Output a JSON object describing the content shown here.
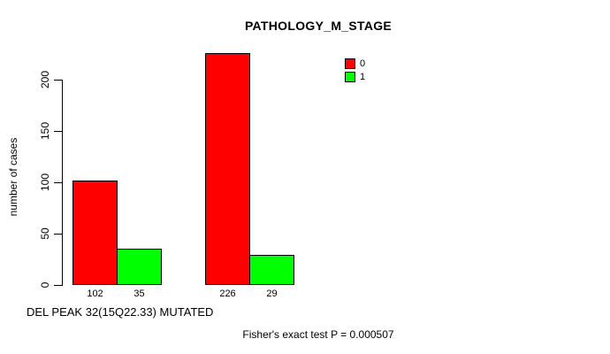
{
  "chart_data": {
    "type": "bar",
    "title": "PATHOLOGY_M_STAGE",
    "ylabel": "number of cases",
    "xlabel": "DEL PEAK 32(15Q22.33) MUTATED",
    "annotation": "Fisher's exact test P = 0.000507",
    "yticks": [
      0,
      50,
      100,
      150,
      200
    ],
    "ylim": [
      0,
      228
    ],
    "grid": false,
    "legend_position": "top-right",
    "series": [
      {
        "name": "0",
        "color": "#ff0000",
        "values": [
          102,
          226
        ]
      },
      {
        "name": "1",
        "color": "#00ff00",
        "values": [
          35,
          29
        ]
      }
    ],
    "bar_count_labels": [
      [
        "102",
        "35"
      ],
      [
        "226",
        "29"
      ]
    ],
    "colors": {
      "background": "#ffffff",
      "axis": "#000000",
      "text": "#000000",
      "bar_border": "#000000"
    }
  }
}
